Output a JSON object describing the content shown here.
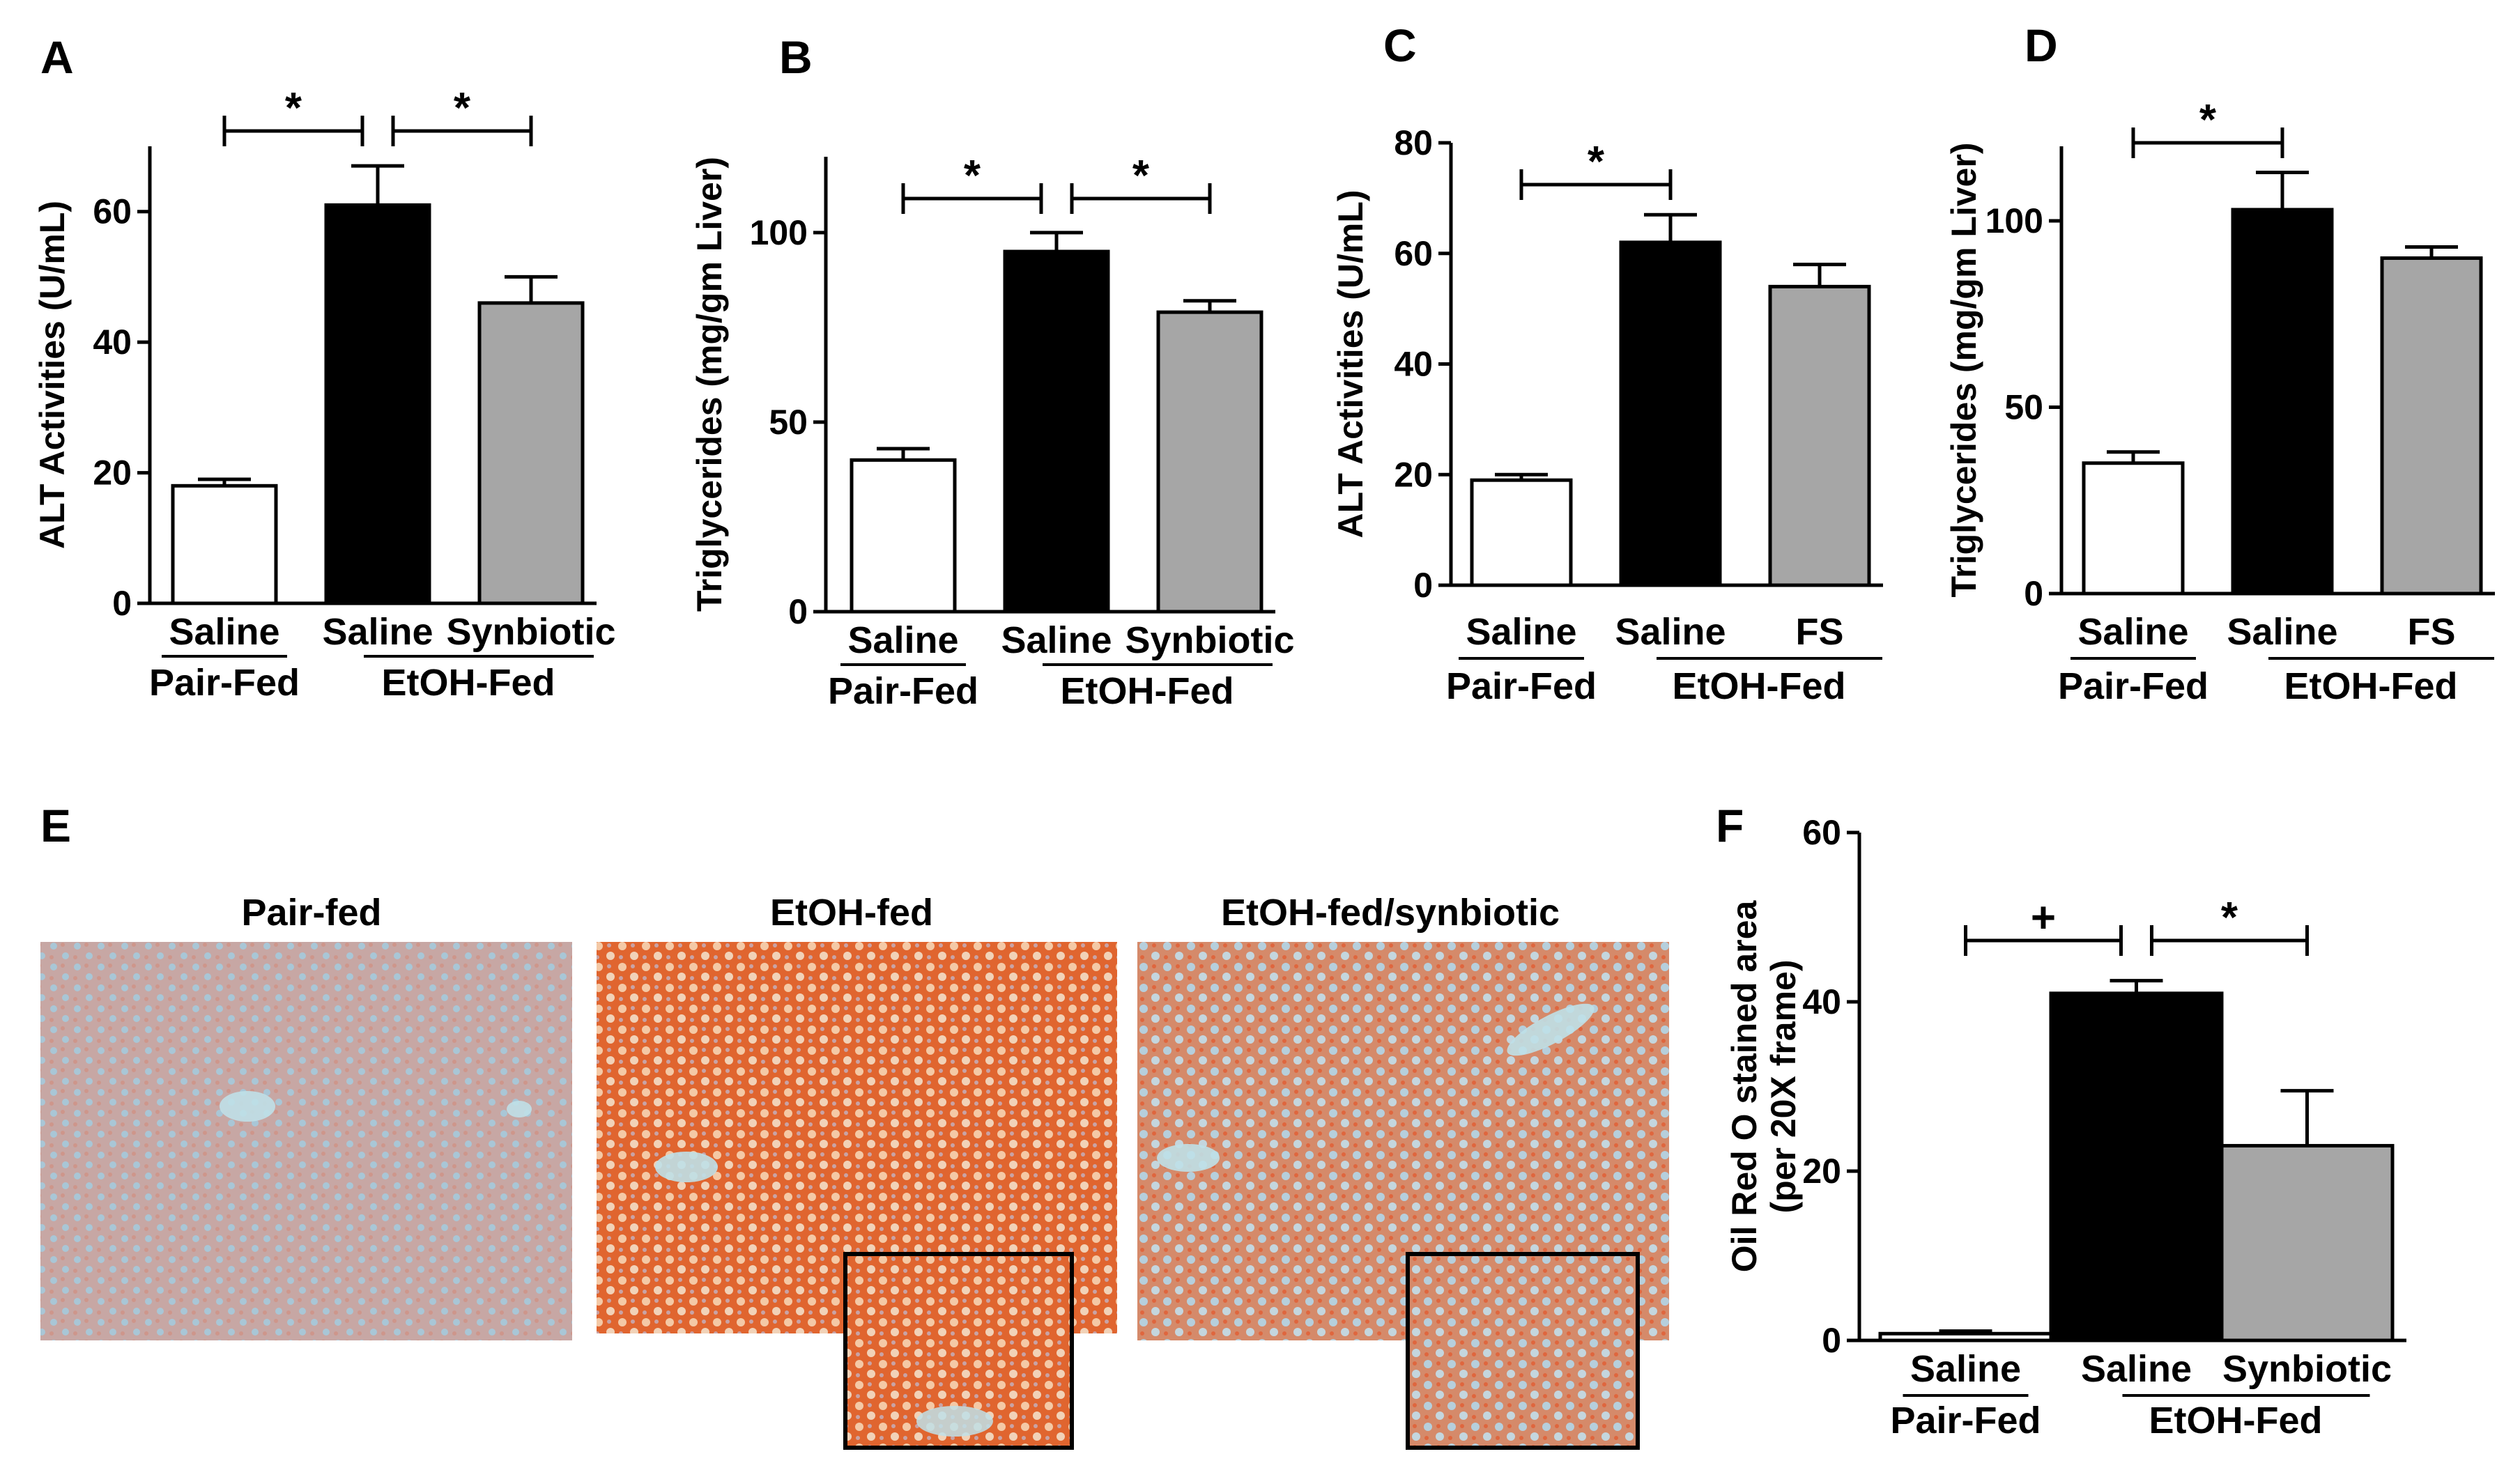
{
  "panel_labels": [
    "A",
    "B",
    "C",
    "D",
    "E",
    "F"
  ],
  "colors": {
    "pair_fed": "#ffffff",
    "etoh_saline": "#000000",
    "etoh_treated": "#a6a6a6",
    "tissue_base": "#c79a92",
    "tissue_lipid": "#e8552a",
    "tissue_nuclei": "#8fb7d6"
  },
  "chart_data": [
    {
      "panel": "A",
      "type": "bar",
      "ylabel": "ALT Activities (U/mL)",
      "ylim": [
        0,
        70
      ],
      "yticks": [
        "0",
        "20",
        "40",
        "60"
      ],
      "categories": [
        "Saline",
        "Saline",
        "Synbiotic"
      ],
      "groups": [
        "Pair-Fed",
        "EtOH-Fed"
      ],
      "values": [
        18,
        61,
        46
      ],
      "errors": [
        1,
        6,
        4
      ],
      "significance": [
        "*",
        "*"
      ]
    },
    {
      "panel": "B",
      "type": "bar",
      "ylabel": "Triglycerides (mg/gm Liver)",
      "ylim": [
        0,
        120
      ],
      "yticks": [
        "0",
        "50",
        "100"
      ],
      "categories": [
        "Saline",
        "Saline",
        "Synbiotic"
      ],
      "groups": [
        "Pair-Fed",
        "EtOH-Fed"
      ],
      "values": [
        40,
        95,
        79
      ],
      "errors": [
        3,
        5,
        3
      ],
      "significance": [
        "*",
        "*"
      ]
    },
    {
      "panel": "C",
      "type": "bar",
      "ylabel": "ALT Activities (U/mL)",
      "ylim": [
        0,
        80
      ],
      "yticks": [
        "0",
        "20",
        "40",
        "60",
        "80"
      ],
      "categories": [
        "Saline",
        "Saline",
        "FS"
      ],
      "groups": [
        "Pair-Fed",
        "EtOH-Fed"
      ],
      "values": [
        19,
        62,
        54
      ],
      "errors": [
        1,
        5,
        4
      ],
      "significance": [
        "*"
      ]
    },
    {
      "panel": "D",
      "type": "bar",
      "ylabel": "Triglycerides (mg/gm Liver)",
      "ylim": [
        0,
        120
      ],
      "yticks": [
        "0",
        "50",
        "100"
      ],
      "categories": [
        "Saline",
        "Saline",
        "FS"
      ],
      "groups": [
        "Pair-Fed",
        "EtOH-Fed"
      ],
      "values": [
        35,
        103,
        90
      ],
      "errors": [
        3,
        10,
        3
      ],
      "significance": [
        "*"
      ]
    },
    {
      "panel": "F",
      "type": "bar",
      "ylabel": "Oil Red O stained area (per 20X frame)",
      "ylim": [
        0,
        60
      ],
      "yticks": [
        "0",
        "20",
        "40",
        "60"
      ],
      "categories": [
        "Saline",
        "Saline",
        "Synbiotic"
      ],
      "groups": [
        "Pair-Fed",
        "EtOH-Fed"
      ],
      "values": [
        0.8,
        41,
        23
      ],
      "errors": [
        0.3,
        1.5,
        6.5
      ],
      "significance": [
        "+",
        "*"
      ]
    }
  ],
  "histology": {
    "panel": "E",
    "titles": [
      "Pair-fed",
      "EtOH-fed",
      "EtOH-fed/synbiotic"
    ],
    "lipid_intensity": [
      0.15,
      0.8,
      0.5
    ]
  }
}
